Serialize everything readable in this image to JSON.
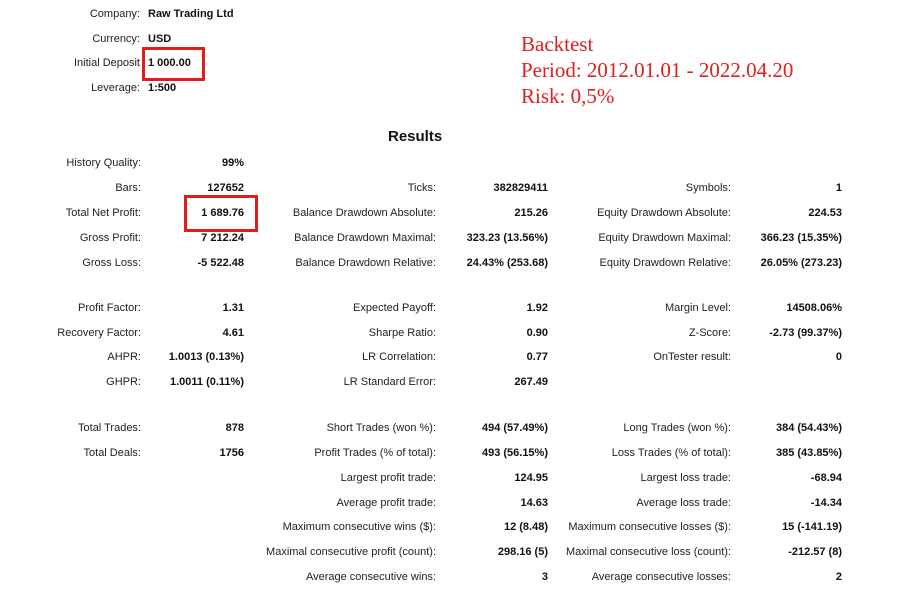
{
  "header": [
    {
      "label": "Company:",
      "value": "Raw Trading Ltd"
    },
    {
      "label": "Currency:",
      "value": "USD"
    },
    {
      "label": "Initial Deposit",
      "value": "1 000.00"
    },
    {
      "label": "Leverage:",
      "value": "1:500"
    }
  ],
  "note": {
    "line1": "Backtest",
    "line2": "Period:  2012.01.01 - 2022.04.20",
    "line3": "Risk: 0,5%"
  },
  "results_title": "Results",
  "col1": [
    {
      "label": "History Quality:",
      "value": "99%"
    },
    {
      "label": "Bars:",
      "value": "127652"
    },
    {
      "label": "Total Net Profit:",
      "value": "1 689.76"
    },
    {
      "label": "Gross Profit:",
      "value": "7 212.24"
    },
    {
      "label": "Gross Loss:",
      "value": "-5 522.48"
    },
    {
      "label": "Profit Factor:",
      "value": "1.31"
    },
    {
      "label": "Recovery Factor:",
      "value": "4.61"
    },
    {
      "label": "AHPR:",
      "value": "1.0013 (0.13%)"
    },
    {
      "label": "GHPR:",
      "value": "1.0011 (0.11%)"
    },
    {
      "label": "Total Trades:",
      "value": "878"
    },
    {
      "label": "Total Deals:",
      "value": "1756"
    }
  ],
  "col2": [
    {
      "label": "Ticks:",
      "value": "382829411"
    },
    {
      "label": "Balance Drawdown Absolute:",
      "value": "215.26"
    },
    {
      "label": "Balance Drawdown Maximal:",
      "value": "323.23 (13.56%)"
    },
    {
      "label": "Balance Drawdown Relative:",
      "value": "24.43% (253.68)"
    },
    {
      "label": "Expected Payoff:",
      "value": "1.92"
    },
    {
      "label": "Sharpe Ratio:",
      "value": "0.90"
    },
    {
      "label": "LR Correlation:",
      "value": "0.77"
    },
    {
      "label": "LR Standard Error:",
      "value": "267.49"
    },
    {
      "label": "Short Trades (won %):",
      "value": "494 (57.49%)"
    },
    {
      "label": "Profit Trades (% of total):",
      "value": "493 (56.15%)"
    },
    {
      "label": "Largest profit trade:",
      "value": "124.95"
    },
    {
      "label": "Average profit trade:",
      "value": "14.63"
    },
    {
      "label": "Maximum consecutive wins ($):",
      "value": "12 (8.48)"
    },
    {
      "label": "Maximal consecutive profit (count):",
      "value": "298.16 (5)"
    },
    {
      "label": "Average consecutive wins:",
      "value": "3"
    }
  ],
  "col3": [
    {
      "label": "Symbols:",
      "value": "1"
    },
    {
      "label": "Equity Drawdown Absolute:",
      "value": "224.53"
    },
    {
      "label": "Equity Drawdown Maximal:",
      "value": "366.23 (15.35%)"
    },
    {
      "label": "Equity Drawdown Relative:",
      "value": "26.05% (273.23)"
    },
    {
      "label": "Margin Level:",
      "value": "14508.06%"
    },
    {
      "label": "Z-Score:",
      "value": "-2.73 (99.37%)"
    },
    {
      "label": "OnTester result:",
      "value": "0"
    },
    {
      "label": "Long Trades (won %):",
      "value": "384 (54.43%)"
    },
    {
      "label": "Loss Trades (% of total):",
      "value": "385 (43.85%)"
    },
    {
      "label": "Largest loss trade:",
      "value": "-68.94"
    },
    {
      "label": "Average loss trade:",
      "value": "-14.34"
    },
    {
      "label": "Maximum consecutive losses ($):",
      "value": "15 (-141.19)"
    },
    {
      "label": "Maximal consecutive loss (count):",
      "value": "-212.57 (8)"
    },
    {
      "label": "Average consecutive losses:",
      "value": "2"
    }
  ]
}
